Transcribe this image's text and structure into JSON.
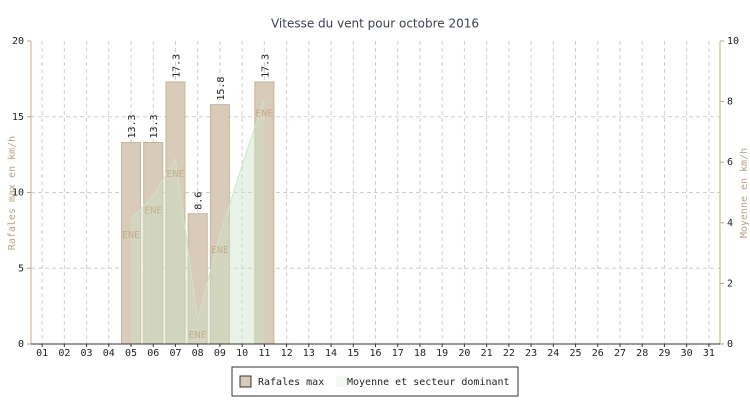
{
  "chart_data": {
    "type": "bar",
    "title": "Vitesse du vent pour octobre 2016",
    "categories": [
      "01",
      "02",
      "03",
      "04",
      "05",
      "06",
      "07",
      "08",
      "09",
      "10",
      "11",
      "12",
      "13",
      "14",
      "15",
      "16",
      "17",
      "18",
      "19",
      "20",
      "21",
      "22",
      "23",
      "24",
      "25",
      "26",
      "27",
      "28",
      "29",
      "30",
      "31"
    ],
    "series": [
      {
        "name": "Rafales max",
        "type": "bar",
        "color": "#d8ccb8",
        "values": [
          null,
          null,
          null,
          null,
          13.3,
          13.3,
          17.3,
          8.6,
          15.8,
          null,
          17.3,
          null,
          null,
          null,
          null,
          null,
          null,
          null,
          null,
          null,
          null,
          null,
          null,
          null,
          null,
          null,
          null,
          null,
          null,
          null,
          null
        ]
      },
      {
        "name": "Moyenne et secteur dominant",
        "type": "area",
        "axis": "y2",
        "color": "#cfe3c8",
        "values": [
          null,
          null,
          null,
          null,
          4.1,
          4.9,
          6.1,
          0.8,
          3.6,
          5.9,
          8.1,
          null,
          null,
          null,
          null,
          null,
          null,
          null,
          null,
          null,
          null,
          null,
          null,
          null,
          null,
          null,
          null,
          null,
          null,
          null,
          null
        ],
        "directions": [
          null,
          null,
          null,
          null,
          "ENE",
          "ENE",
          "ENE",
          "ENE",
          "ENE",
          null,
          "ENE",
          null,
          null,
          null,
          null,
          null,
          null,
          null,
          null,
          null,
          null,
          null,
          null,
          null,
          null,
          null,
          null,
          null,
          null,
          null,
          null
        ]
      }
    ],
    "ylabel": "Rafales max en km/h",
    "y2label": "Moyenne en km/h",
    "ylim": [
      0,
      20
    ],
    "yticks": [
      0,
      5,
      10,
      15,
      20
    ],
    "y2lim": [
      0,
      10
    ],
    "y2ticks": [
      0,
      2,
      4,
      6,
      8,
      10
    ],
    "grid": true
  }
}
